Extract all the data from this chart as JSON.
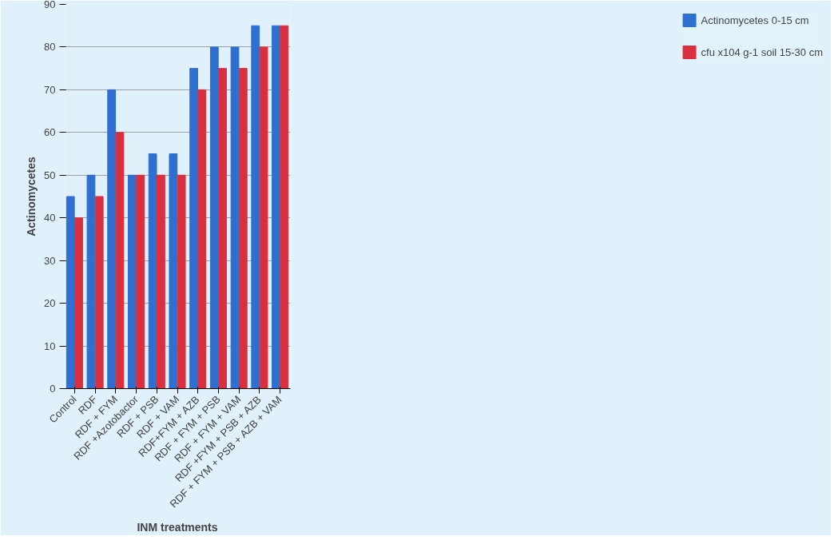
{
  "chart_data": {
    "type": "bar",
    "xlabel": "INM treatments",
    "ylabel": "Actinomycetes",
    "categories": [
      "Control",
      "RDF",
      "RDF + FYM",
      "RDF +Azotobactor",
      "RDF + PSB",
      "RDF + VAM",
      "RDF+FYM + AZB",
      "RDF + FYM + PSB",
      "RDF + FYM + VAM",
      "RDF +FYM + PSB + AZB",
      "RDF + FYM + PSB + AZB + VAM"
    ],
    "series": [
      {
        "name": "Actinomycetes 0-15 cm",
        "color": "#2e6fd0",
        "values": [
          45,
          50,
          70,
          50,
          55,
          55,
          75,
          80,
          80,
          85,
          85
        ]
      },
      {
        "name": "cfu x104 g-1 soil 15-30 cm",
        "color": "#d93040",
        "values": [
          40,
          45,
          60,
          50,
          50,
          50,
          70,
          75,
          75,
          80,
          85
        ]
      }
    ],
    "ylim": [
      0,
      90
    ],
    "yticks": [
      0,
      10,
      20,
      30,
      40,
      50,
      60,
      70,
      80,
      90
    ],
    "grid": "y",
    "legend": "right"
  }
}
